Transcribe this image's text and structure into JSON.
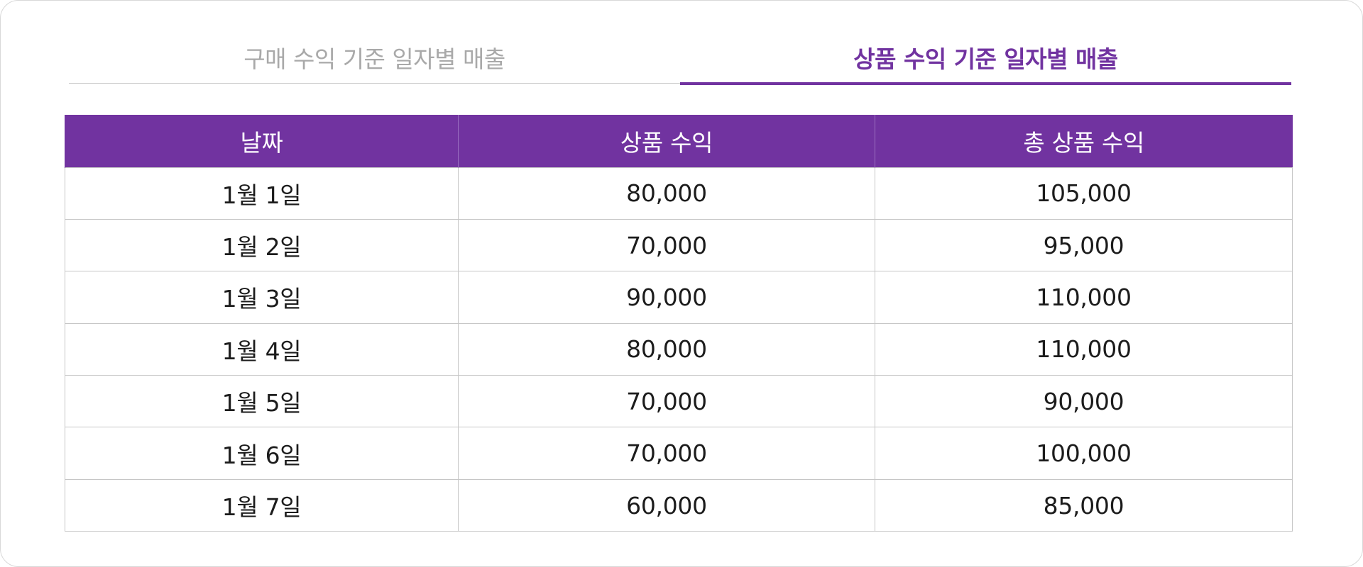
{
  "tabs": [
    {
      "label": "구매 수익 기준 일자별 매출",
      "active": false
    },
    {
      "label": "상품 수익 기준 일자별 매출",
      "active": true
    }
  ],
  "colors": {
    "accent": "#7133a0",
    "inactive_tab": "#a9a9a9",
    "border": "#c6c6c6"
  },
  "table": {
    "headers": [
      "날짜",
      "상품 수익",
      "총 상품 수익"
    ],
    "rows": [
      [
        "1월 1일",
        "80,000",
        "105,000"
      ],
      [
        "1월 2일",
        "70,000",
        "95,000"
      ],
      [
        "1월 3일",
        "90,000",
        "110,000"
      ],
      [
        "1월 4일",
        "80,000",
        "110,000"
      ],
      [
        "1월 5일",
        "70,000",
        "90,000"
      ],
      [
        "1월 6일",
        "70,000",
        "100,000"
      ],
      [
        "1월 7일",
        "60,000",
        "85,000"
      ]
    ]
  }
}
